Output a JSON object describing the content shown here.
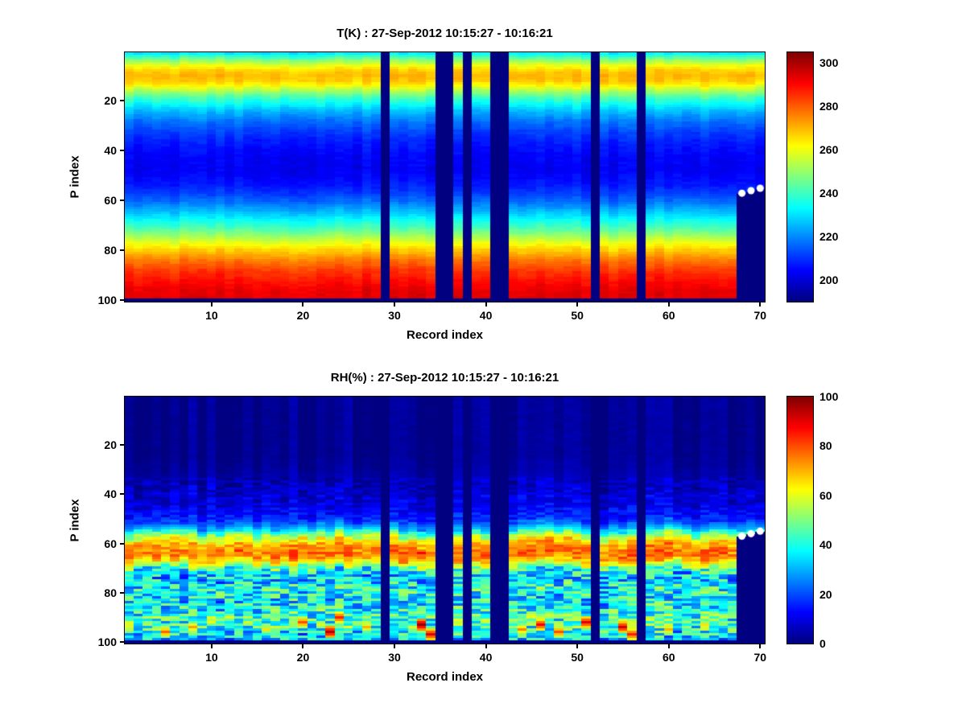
{
  "figure": {
    "background": "#ffffff"
  },
  "chart_data": [
    {
      "type": "heatmap",
      "title": "T(K) : 27-Sep-2012 10:15:27 - 10:16:21",
      "xlabel": "Record index",
      "ylabel": "P index",
      "x_range": [
        1,
        70
      ],
      "y_range": [
        1,
        100
      ],
      "y_axis_reversed": true,
      "x_ticks": [
        10,
        20,
        30,
        40,
        50,
        60,
        70
      ],
      "y_ticks": [
        20,
        40,
        60,
        80,
        100
      ],
      "colormap": "jet",
      "value_range": [
        190,
        305
      ],
      "colorbar_ticks": [
        200,
        220,
        240,
        260,
        280,
        300
      ],
      "legend_position": "right-colorbar",
      "grid": false,
      "profile": [
        [
          1,
          231
        ],
        [
          2,
          238
        ],
        [
          4,
          250
        ],
        [
          6,
          260
        ],
        [
          8,
          267
        ],
        [
          10,
          270
        ],
        [
          12,
          268
        ],
        [
          14,
          262
        ],
        [
          16,
          253
        ],
        [
          18,
          245
        ],
        [
          21,
          234
        ],
        [
          24,
          226
        ],
        [
          28,
          218
        ],
        [
          32,
          212
        ],
        [
          36,
          208
        ],
        [
          42,
          204
        ],
        [
          48,
          203
        ],
        [
          54,
          207
        ],
        [
          58,
          212
        ],
        [
          62,
          220
        ],
        [
          66,
          229
        ],
        [
          70,
          239
        ],
        [
          74,
          250
        ],
        [
          78,
          262
        ],
        [
          81,
          270
        ],
        [
          84,
          277
        ],
        [
          88,
          284
        ],
        [
          92,
          289
        ],
        [
          96,
          293
        ],
        [
          100,
          294
        ]
      ],
      "column_noise_amp": 2,
      "cell_noise_amp": 1.5,
      "column_p_jitter": 0.8,
      "noise_regions": [],
      "hot_spots": [],
      "missing_records": [
        29,
        35,
        36,
        38,
        41,
        42,
        52,
        57
      ],
      "partial_records": [
        {
          "record": 68,
          "last_valid_p": 57
        },
        {
          "record": 69,
          "last_valid_p": 56
        },
        {
          "record": 70,
          "last_valid_p": 55
        }
      ],
      "masked_bottom_row": true,
      "markers": {
        "shape": "circle",
        "color": "#ffffff",
        "radius_px": 4.5
      },
      "seed": 1
    },
    {
      "type": "heatmap",
      "title": "RH(%) : 27-Sep-2012 10:15:27 - 10:16:21",
      "xlabel": "Record index",
      "ylabel": "P index",
      "x_range": [
        1,
        70
      ],
      "y_range": [
        1,
        100
      ],
      "y_axis_reversed": true,
      "x_ticks": [
        10,
        20,
        30,
        40,
        50,
        60,
        70
      ],
      "y_ticks": [
        20,
        40,
        60,
        80,
        100
      ],
      "colormap": "jet",
      "value_range": [
        0,
        100
      ],
      "colorbar_ticks": [
        0,
        20,
        40,
        60,
        80,
        100
      ],
      "legend_position": "right-colorbar",
      "grid": false,
      "profile": [
        [
          1,
          2
        ],
        [
          25,
          2
        ],
        [
          32,
          4
        ],
        [
          36,
          6
        ],
        [
          40,
          8
        ],
        [
          44,
          10
        ],
        [
          48,
          13
        ],
        [
          51,
          18
        ],
        [
          54,
          30
        ],
        [
          56,
          45
        ],
        [
          58,
          60
        ],
        [
          60,
          70
        ],
        [
          62,
          75
        ],
        [
          64,
          76
        ],
        [
          66,
          73
        ],
        [
          68,
          62
        ],
        [
          70,
          45
        ],
        [
          72,
          34
        ],
        [
          74,
          32
        ],
        [
          77,
          37
        ],
        [
          80,
          40
        ],
        [
          83,
          34
        ],
        [
          86,
          38
        ],
        [
          90,
          44
        ],
        [
          94,
          42
        ],
        [
          97,
          36
        ],
        [
          100,
          30
        ]
      ],
      "column_noise_amp": 3,
      "cell_noise_amp": 1,
      "column_p_jitter": 3,
      "noise_regions": [
        {
          "p_min": 34,
          "p_max": 52,
          "amp": 4
        },
        {
          "p_min": 55,
          "p_max": 69,
          "amp": 6
        },
        {
          "p_min": 70,
          "p_max": 99,
          "amp": 16
        }
      ],
      "hot_spots": [
        {
          "record": 5,
          "p": 96,
          "value": 78
        },
        {
          "record": 8,
          "p": 94,
          "value": 72
        },
        {
          "record": 12,
          "p": 90,
          "value": 60
        },
        {
          "record": 13,
          "p": 63,
          "value": 85
        },
        {
          "record": 16,
          "p": 95,
          "value": 65
        },
        {
          "record": 20,
          "p": 92,
          "value": 80
        },
        {
          "record": 21,
          "p": 64,
          "value": 82
        },
        {
          "record": 23,
          "p": 96,
          "value": 95
        },
        {
          "record": 24,
          "p": 90,
          "value": 85
        },
        {
          "record": 27,
          "p": 94,
          "value": 70
        },
        {
          "record": 33,
          "p": 93,
          "value": 98
        },
        {
          "record": 33,
          "p": 64,
          "value": 88
        },
        {
          "record": 34,
          "p": 97,
          "value": 90
        },
        {
          "record": 44,
          "p": 95,
          "value": 75
        },
        {
          "record": 46,
          "p": 93,
          "value": 88
        },
        {
          "record": 47,
          "p": 63,
          "value": 84
        },
        {
          "record": 48,
          "p": 96,
          "value": 80
        },
        {
          "record": 51,
          "p": 92,
          "value": 90
        },
        {
          "record": 55,
          "p": 94,
          "value": 92
        },
        {
          "record": 56,
          "p": 65,
          "value": 85
        },
        {
          "record": 56,
          "p": 97,
          "value": 85
        },
        {
          "record": 60,
          "p": 95,
          "value": 70
        },
        {
          "record": 64,
          "p": 93,
          "value": 65
        }
      ],
      "missing_records": [
        29,
        35,
        36,
        38,
        41,
        42,
        52,
        57
      ],
      "partial_records": [
        {
          "record": 68,
          "last_valid_p": 57
        },
        {
          "record": 69,
          "last_valid_p": 56
        },
        {
          "record": 70,
          "last_valid_p": 55
        }
      ],
      "masked_bottom_row": true,
      "markers": {
        "shape": "circle",
        "color": "#ffffff",
        "radius_px": 4.5
      },
      "seed": 2
    }
  ]
}
